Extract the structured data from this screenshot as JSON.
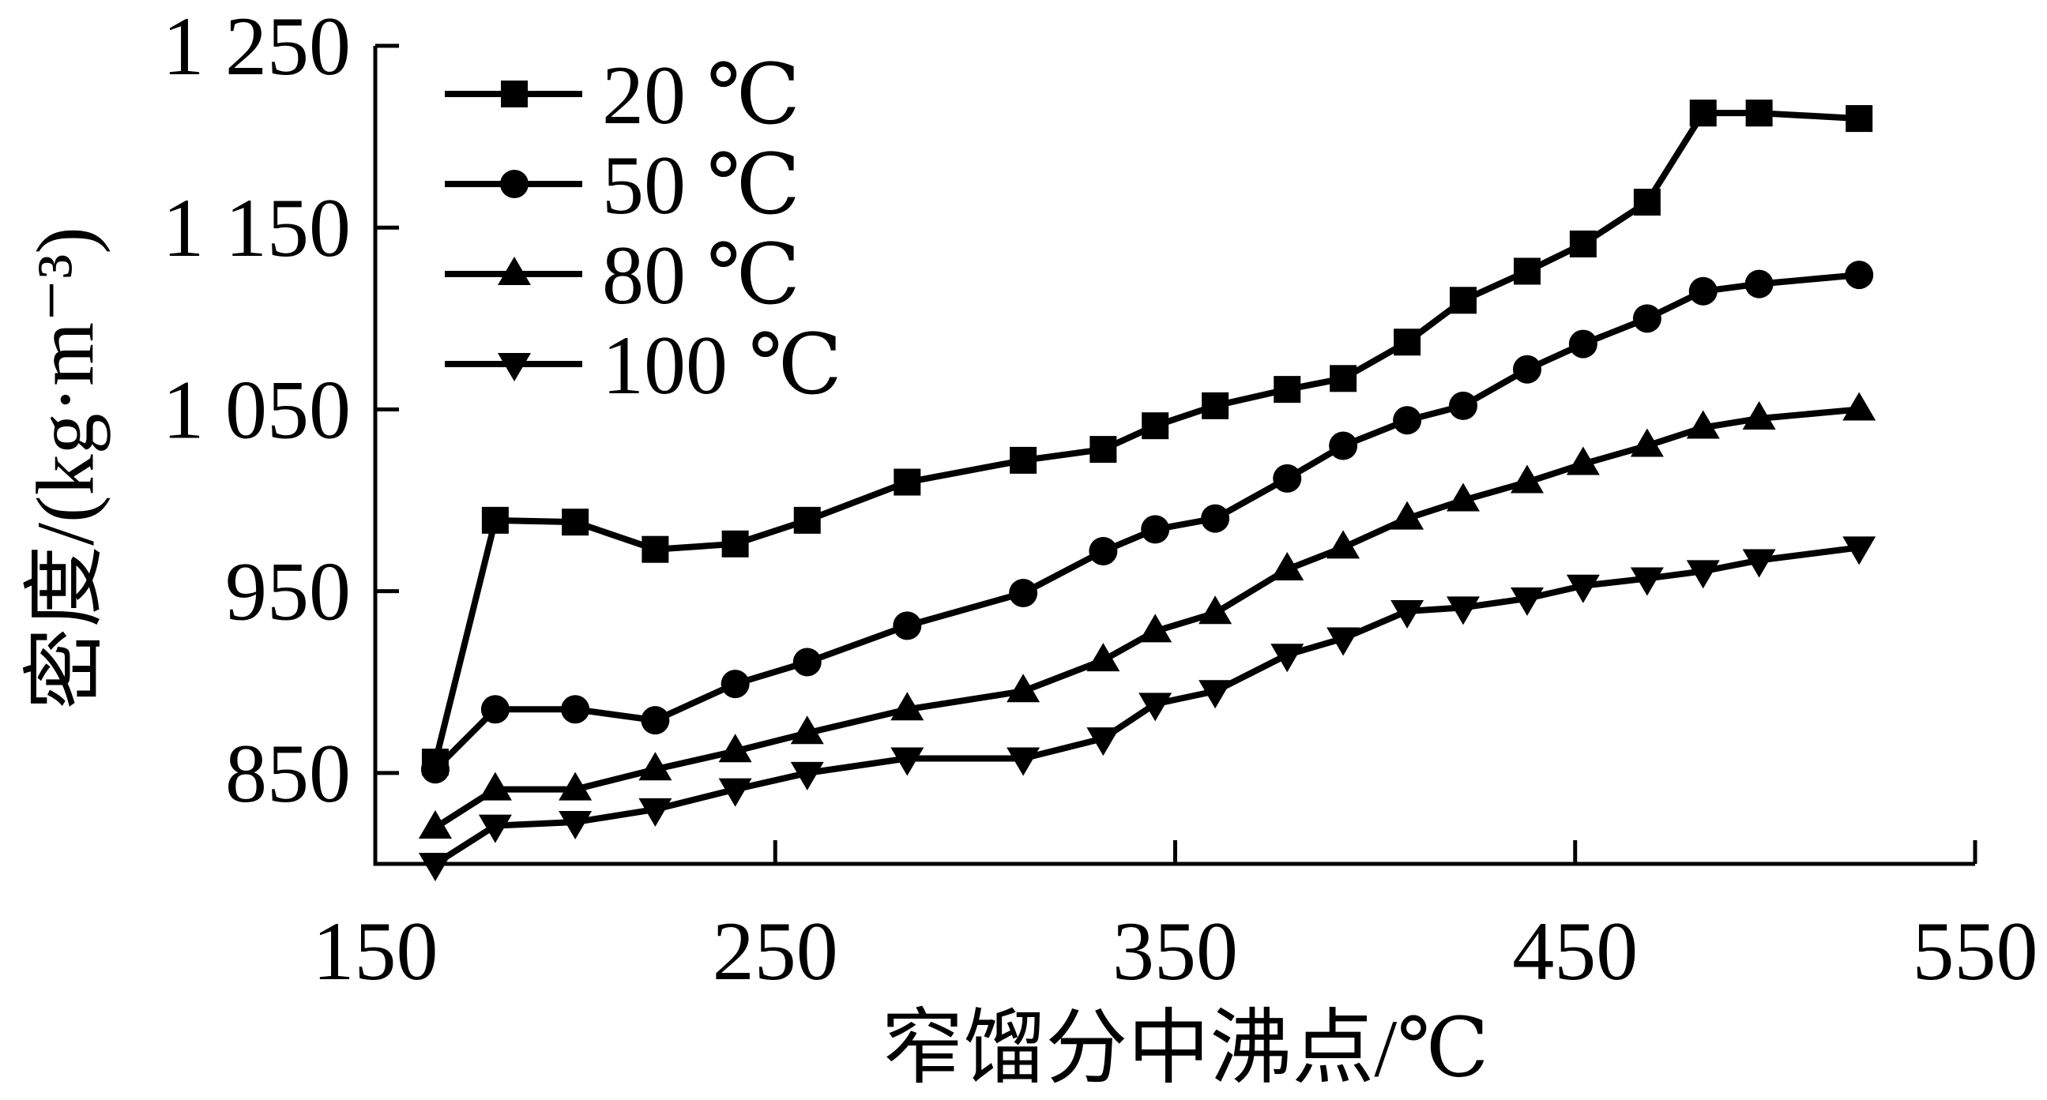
{
  "chart_data": {
    "type": "line",
    "xlabel": "窄馏分中沸点/℃",
    "ylabel": "密度/(kg·m⁻³)",
    "xlim": [
      150,
      550
    ],
    "ylim": [
      800,
      1250
    ],
    "xticks": [
      {
        "value": 150,
        "label": "150"
      },
      {
        "value": 250,
        "label": "250"
      },
      {
        "value": 350,
        "label": "350"
      },
      {
        "value": 450,
        "label": "450"
      },
      {
        "value": 550,
        "label": "550"
      }
    ],
    "yticks": [
      {
        "value": 850,
        "label": "850"
      },
      {
        "value": 950,
        "label": "950"
      },
      {
        "value": 1050,
        "label": "1 050"
      },
      {
        "value": 1150,
        "label": "1 150"
      },
      {
        "value": 1250,
        "label": "1 250"
      }
    ],
    "grid": false,
    "legend": {
      "position": "top-left"
    },
    "x": [
      165,
      180,
      200,
      220,
      240,
      258,
      283,
      312,
      332,
      345,
      360,
      378,
      392,
      408,
      422,
      438,
      452,
      468,
      482,
      496,
      521
    ],
    "series": [
      {
        "name": "20 ℃",
        "marker": "square",
        "values": [
          856,
          989,
          988,
          973,
          976,
          989,
          1010,
          1022,
          1028,
          1041,
          1052,
          1061,
          1067,
          1087,
          1110,
          1126,
          1141,
          1164,
          1213,
          1213,
          1210
        ]
      },
      {
        "name": "50 ℃",
        "marker": "circle",
        "values": [
          852,
          885,
          885,
          879,
          899,
          911,
          931,
          949,
          972,
          984,
          990,
          1012,
          1030,
          1044,
          1052,
          1072,
          1086,
          1100,
          1115,
          1119,
          1124
        ]
      },
      {
        "name": "80 ℃",
        "marker": "triangle-up",
        "values": [
          820,
          841,
          841,
          852,
          862,
          872,
          885,
          895,
          912,
          928,
          938,
          962,
          974,
          990,
          1000,
          1010,
          1020,
          1030,
          1040,
          1045,
          1050
        ]
      },
      {
        "name": "100 ℃",
        "marker": "triangle-down",
        "values": [
          800,
          821,
          823,
          830,
          841,
          850,
          858,
          858,
          869,
          888,
          895,
          915,
          924,
          939,
          941,
          946,
          953,
          957,
          961,
          967,
          974
        ]
      }
    ]
  },
  "colors": {
    "line": "#000000",
    "background": "#ffffff"
  }
}
